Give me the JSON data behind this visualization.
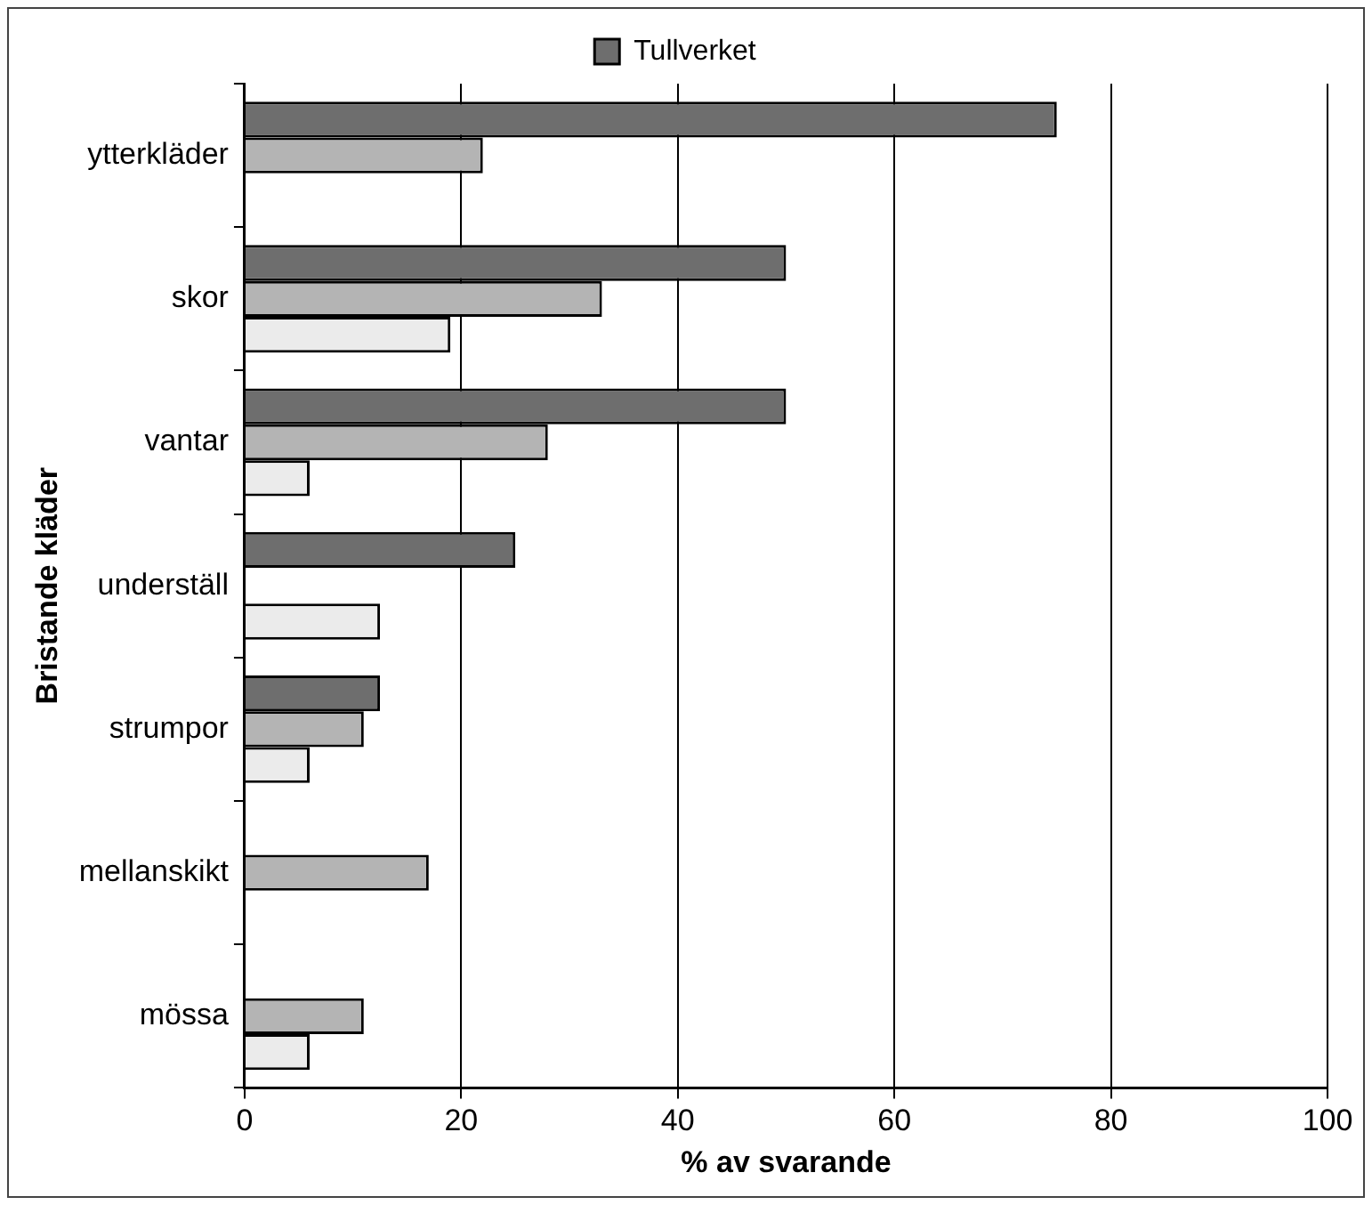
{
  "chart_data": {
    "type": "bar",
    "orientation": "horizontal",
    "xlabel": "% av svarande",
    "ylabel": "Bristande kläder",
    "categories": [
      "ytterkläder",
      "skor",
      "vantar",
      "underställ",
      "strumpor",
      "mellanskikt",
      "mössa"
    ],
    "series": [
      {
        "color": "#ebebeb",
        "values": [
          null,
          19,
          6,
          12.5,
          6,
          null,
          6
        ]
      },
      {
        "color": "#b4b4b4",
        "values": [
          22,
          33,
          28,
          null,
          11,
          17,
          11
        ]
      },
      {
        "name": "Tullverket",
        "color": "#6e6e6e",
        "values": [
          75,
          50,
          50,
          25,
          12.5,
          null,
          null
        ]
      }
    ],
    "xlim": [
      0,
      100
    ],
    "xticks": [
      0,
      20,
      40,
      60,
      80,
      100
    ],
    "grid": "x",
    "legend": "top"
  }
}
